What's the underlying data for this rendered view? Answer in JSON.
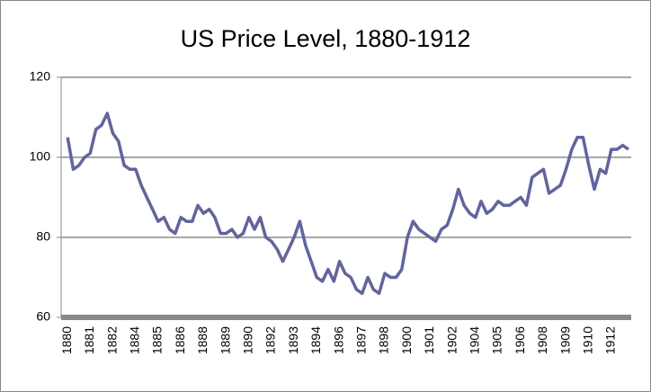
{
  "chart_data": {
    "type": "line",
    "title": "US Price Level, 1880-1912",
    "categories": [
      "1880",
      null,
      null,
      null,
      "1881",
      null,
      null,
      null,
      "1882",
      null,
      null,
      null,
      "1884",
      null,
      null,
      null,
      "1885",
      null,
      null,
      null,
      "1886",
      null,
      null,
      null,
      "1888",
      null,
      null,
      null,
      "1889",
      null,
      null,
      null,
      "1890",
      null,
      null,
      null,
      "1892",
      null,
      null,
      null,
      "1893",
      null,
      null,
      null,
      "1894",
      null,
      null,
      null,
      "1896",
      null,
      null,
      null,
      "1897",
      null,
      null,
      null,
      "1898",
      null,
      null,
      null,
      "1900",
      null,
      null,
      null,
      "1901",
      null,
      null,
      null,
      "1902",
      null,
      null,
      null,
      "1904",
      null,
      null,
      null,
      "1905",
      null,
      null,
      null,
      "1906",
      null,
      null,
      null,
      "1908",
      null,
      null,
      null,
      "1909",
      null,
      null,
      null,
      "1910",
      null,
      null,
      null,
      "1912",
      null,
      null,
      null
    ],
    "series": [
      {
        "name": "US Price Level",
        "color": "#62649c",
        "values": [
          105,
          97,
          98,
          100,
          101,
          107,
          108,
          111,
          106,
          104,
          98,
          97,
          97,
          93,
          90,
          87,
          84,
          85,
          82,
          81,
          85,
          84,
          84,
          88,
          86,
          87,
          85,
          81,
          81,
          82,
          80,
          81,
          85,
          82,
          85,
          80,
          79,
          77,
          74,
          77,
          80,
          84,
          78,
          74,
          70,
          69,
          72,
          69,
          74,
          71,
          70,
          67,
          66,
          70,
          67,
          66,
          71,
          70,
          70,
          72,
          80,
          84,
          82,
          81,
          80,
          79,
          82,
          83,
          87,
          92,
          88,
          86,
          85,
          89,
          86,
          87,
          89,
          88,
          88,
          89,
          90,
          88,
          95,
          96,
          97,
          91,
          92,
          93,
          97,
          102,
          105,
          105,
          98,
          92,
          97,
          96,
          102,
          102,
          103,
          102
        ]
      }
    ],
    "ylim": [
      60,
      120
    ],
    "yticks": [
      60,
      80,
      100,
      120
    ],
    "grid": true
  }
}
